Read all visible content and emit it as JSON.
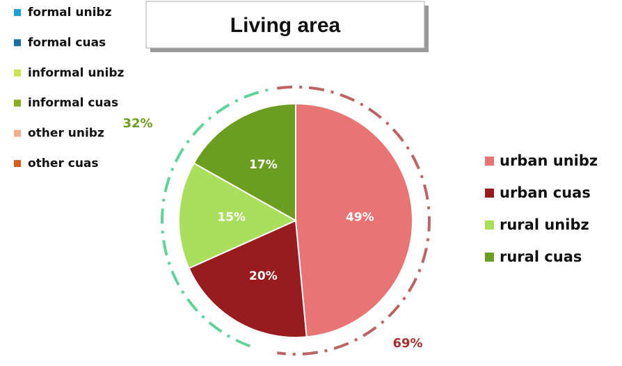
{
  "chart_data": {
    "type": "pie",
    "title": "Living area",
    "categories": [
      "urban unibz",
      "urban cuas",
      "rural unibz",
      "rural cuas"
    ],
    "values": [
      49,
      20,
      15,
      17
    ],
    "value_labels": [
      "49%",
      "20%",
      "15%",
      "17%"
    ],
    "colors": [
      "#e87474",
      "#981b1e",
      "#a9df5c",
      "#6b9e20"
    ],
    "extra_legend": [
      {
        "name": "formal unibz",
        "color": "#1e9fd8"
      },
      {
        "name": "formal cuas",
        "color": "#1b6ea3"
      },
      {
        "name": "informal unibz",
        "color": "#c9e64f"
      },
      {
        "name": "informal cuas",
        "color": "#8aae1f"
      },
      {
        "name": "other unibz",
        "color": "#f0b08c"
      },
      {
        "name": "other cuas",
        "color": "#d65f1f"
      }
    ],
    "annotations": [
      {
        "text": "69%",
        "color": "#a5302f"
      },
      {
        "text": "32%",
        "color": "#6b9e20"
      }
    ]
  }
}
